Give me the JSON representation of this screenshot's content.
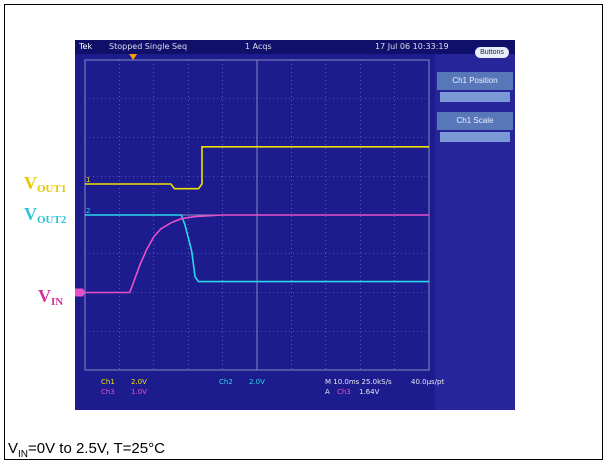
{
  "caption": {
    "prefix": "V",
    "sub": "IN",
    "rest": "=0V to 2.5V, T=25°C"
  },
  "scope": {
    "top_bar": {
      "mode": "Tek",
      "acq": "Stopped Single Seq",
      "acqs": "1 Acqs",
      "date": "17 Jul 06 10:33:19"
    },
    "buttons_label": "Buttons",
    "side_panel": [
      {
        "label": "Ch1 Position"
      },
      {
        "label": "Ch1 Scale"
      }
    ],
    "readouts": {
      "ch1": "Ch1",
      "ch1_scale": "2.0V",
      "ch3": "Ch3",
      "ch3_scale": "1.0V",
      "ch2": "Ch2",
      "ch2_scale": "2.0V",
      "timebase": "M 10.0ms 25.0kS/s",
      "pt": "40.0µs/pt",
      "trig_a": "A",
      "trig_ch": "Ch3",
      "trig_level": "1.64V"
    },
    "markers": {
      "ch1": "1",
      "ch2": "2"
    }
  },
  "channel_labels": [
    {
      "name": "V",
      "sub": "OUT1",
      "color": "#e6c800"
    },
    {
      "name": "V",
      "sub": "OUT2",
      "color": "#2ec4d6"
    },
    {
      "name": "V",
      "sub": "IN",
      "color": "#d2329d"
    }
  ],
  "colors": {
    "ch1": "#f0e000",
    "ch2": "#28d8e8",
    "ch3": "#e850c8",
    "grid": "#8888c0",
    "background": "#1c1c8e"
  },
  "chart_data": {
    "type": "line",
    "title": "",
    "xlabel": "",
    "ylabel": "",
    "x_unit": "ms",
    "xlim": [
      -40,
      60
    ],
    "ylim_div": [
      -5,
      5
    ],
    "grid": true,
    "series": [
      {
        "name": "Ch1",
        "scale": "2.0V/div",
        "offset_div": 1.0,
        "x": [
          -40,
          -15,
          -14,
          -7,
          -6,
          -6,
          60
        ],
        "values": [
          0.0,
          0.0,
          -0.3,
          -0.3,
          0.0,
          2.4,
          2.4
        ]
      },
      {
        "name": "Ch2",
        "scale": "2.0V/div",
        "offset_div": 0.0,
        "x": [
          -40,
          -12,
          -11,
          -9,
          -8,
          -7,
          60
        ],
        "values": [
          0.0,
          0.0,
          -0.6,
          -2.3,
          -4.0,
          -4.3,
          -4.3
        ]
      },
      {
        "name": "Ch3",
        "scale": "1.0V/div",
        "offset_div": -2.5,
        "x": [
          -40,
          -27,
          -26,
          -24,
          -22,
          -20,
          -18,
          -15,
          -12,
          -8,
          0,
          60
        ],
        "values": [
          0.0,
          0.0,
          0.3,
          0.9,
          1.4,
          1.8,
          2.05,
          2.25,
          2.38,
          2.45,
          2.5,
          2.5
        ]
      }
    ]
  }
}
